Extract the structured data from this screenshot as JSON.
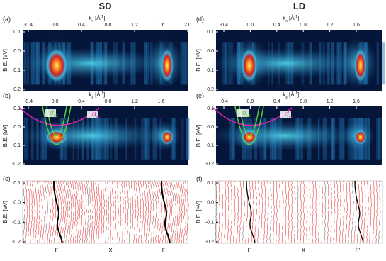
{
  "columns": [
    {
      "title": "SD",
      "panels": [
        {
          "label": "(a)",
          "x_axis_title": [
            "k",
            "x",
            " [Å",
            "-1",
            "]"
          ],
          "x_ticks": [
            "-0.4",
            "0.0",
            "0.4",
            "0.8",
            "1.2",
            "1.6",
            "2.0"
          ],
          "y_axis_title": "B.E. [eV]",
          "y_ticks": [
            "0.1",
            "0.0",
            "-0.1",
            "-0.2"
          ]
        },
        {
          "label": "(b)",
          "x_axis_title": [
            "k",
            "x",
            " [Å",
            "-1",
            "]"
          ],
          "x_ticks": [
            "-0.4",
            "0.0",
            "0.4",
            "0.8",
            "1.2",
            "1.6"
          ],
          "y_axis_title": "B.E. [eV]",
          "y_ticks": [
            "0.1",
            "0.0",
            "-0.1",
            "-0.2"
          ],
          "orbitals": [
            [
              "d",
              "yz"
            ],
            [
              "d",
              "xz"
            ]
          ]
        },
        {
          "label": "(c)",
          "y_axis_title": "B.E. [eV]",
          "y_ticks": [
            "0.1",
            "0.0",
            "-0.1",
            "-0.2"
          ],
          "points": [
            "Γ",
            "X",
            "Γ'"
          ]
        }
      ]
    },
    {
      "title": "LD",
      "panels": [
        {
          "label": "(d)",
          "x_axis_title": [
            "k",
            "x",
            " [Å",
            "-1",
            "]"
          ],
          "x_ticks": [
            "-0.4",
            "0.0",
            "0.4",
            "0.8",
            "1.2",
            "1.6"
          ],
          "y_axis_title": "B.E. [eV]",
          "y_ticks": [
            "0.1",
            "0.0",
            "-0.1",
            "-0.2"
          ]
        },
        {
          "label": "(e)",
          "x_axis_title": [
            "k",
            "x",
            " [Å",
            "-1",
            "]"
          ],
          "x_ticks": [
            "-0.4",
            "0.0",
            "0.4",
            "0.8",
            "1.2",
            "1.6"
          ],
          "y_axis_title": "B.E. [eV]",
          "y_ticks": [
            "0.1",
            "0.0",
            "-0.1",
            "-0.2"
          ],
          "orbitals": [
            [
              "d",
              "yz"
            ],
            [
              "d",
              "xz"
            ]
          ]
        },
        {
          "label": "(f)",
          "y_axis_title": "B.E. [eV]",
          "y_ticks": [
            "0.1",
            "0.0",
            "-0.1",
            "-0.2"
          ],
          "points": [
            "Γ",
            "X",
            "Γ'"
          ]
        }
      ]
    }
  ]
}
